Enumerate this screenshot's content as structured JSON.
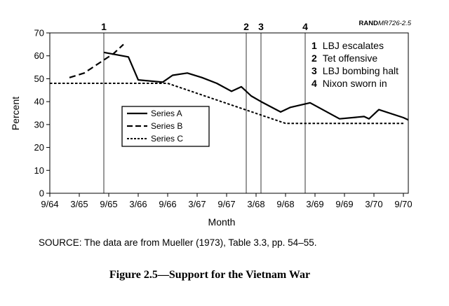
{
  "chart_data": {
    "type": "line",
    "id_label_bold": "RAND",
    "id_label_rest": "MR726-2.5",
    "ylabel": "Percent",
    "xlabel": "Month",
    "ylim": [
      0,
      70
    ],
    "yticks": [
      0,
      10,
      20,
      30,
      40,
      50,
      60,
      70
    ],
    "xlim": [
      "1964-09",
      "1970-10"
    ],
    "xticks": [
      "1964-09",
      "1965-03",
      "1965-09",
      "1966-03",
      "1966-09",
      "1967-03",
      "1967-09",
      "1968-03",
      "1968-09",
      "1969-03",
      "1969-09",
      "1970-03",
      "1970-09"
    ],
    "xtick_labels": [
      "9/64",
      "3/65",
      "9/65",
      "3/66",
      "9/66",
      "3/67",
      "9/67",
      "3/68",
      "9/68",
      "3/69",
      "9/69",
      "3/70",
      "9/70"
    ],
    "grid": false,
    "legend_position": "center-left",
    "series": [
      {
        "name": "Series A",
        "style": "solid",
        "points": [
          [
            "1965-08",
            61.5
          ],
          [
            "1966-01",
            59.5
          ],
          [
            "1966-03",
            49.5
          ],
          [
            "1966-08",
            48.5
          ],
          [
            "1966-10",
            51.5
          ],
          [
            "1967-01",
            52.5
          ],
          [
            "1967-04",
            50.5
          ],
          [
            "1967-07",
            48.0
          ],
          [
            "1967-10",
            44.5
          ],
          [
            "1967-12",
            46.5
          ],
          [
            "1968-02",
            42.5
          ],
          [
            "1968-04",
            40.0
          ],
          [
            "1968-08",
            35.5
          ],
          [
            "1968-10",
            37.5
          ],
          [
            "1969-02",
            39.5
          ],
          [
            "1969-08",
            32.5
          ],
          [
            "1970-01",
            33.5
          ],
          [
            "1970-02",
            32.5
          ],
          [
            "1970-04",
            36.5
          ],
          [
            "1970-09",
            33.0
          ],
          [
            "1970-10",
            32.0
          ]
        ]
      },
      {
        "name": "Series B",
        "style": "dashed",
        "points": [
          [
            "1965-01",
            50.5
          ],
          [
            "1965-04",
            52.5
          ],
          [
            "1965-10",
            61.0
          ],
          [
            "1965-12",
            65.0
          ]
        ]
      },
      {
        "name": "Series C",
        "style": "dotted",
        "points": [
          [
            "1964-09",
            48.0
          ],
          [
            "1966-09",
            48.0
          ],
          [
            "1968-09",
            30.5
          ],
          [
            "1970-09",
            30.5
          ]
        ]
      }
    ],
    "events": [
      {
        "number": "1",
        "label": "LBJ escalates",
        "date": "1965-08"
      },
      {
        "number": "2",
        "label": "Tet offensive",
        "date": "1968-01"
      },
      {
        "number": "3",
        "label": "LBJ bombing halt",
        "date": "1968-04"
      },
      {
        "number": "4",
        "label": "Nixon sworn in",
        "date": "1969-01"
      }
    ]
  },
  "source_note": "SOURCE:  The data are from Mueller (1973), Table 3.3, pp. 54–55.",
  "figure_caption": "Figure 2.5—Support for the Vietnam War"
}
